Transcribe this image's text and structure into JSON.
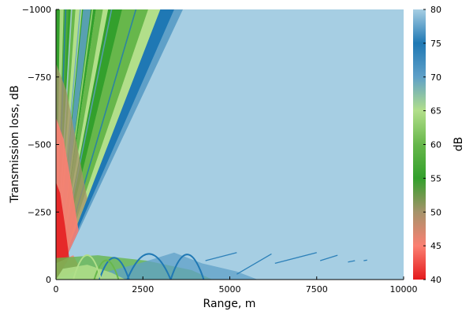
{
  "chart_data": {
    "type": "heatmap",
    "title": "",
    "xlabel": "Range, m",
    "ylabel": "Transmission loss, dB",
    "colorbar_label": "dB",
    "xlim": [
      0,
      10000
    ],
    "ylim": [
      0,
      -1000
    ],
    "clim": [
      40,
      80
    ],
    "x_ticks": [
      0,
      2500,
      5000,
      7500,
      10000
    ],
    "x_tick_labels": [
      "0",
      "2500",
      "5000",
      "7500",
      "10000"
    ],
    "y_ticks": [
      0,
      -250,
      -500,
      -750,
      -1000
    ],
    "y_tick_labels": [
      "0",
      "−250",
      "−500",
      "−750",
      "−1000"
    ],
    "colorbar_ticks": [
      40,
      45,
      50,
      55,
      60,
      65,
      70,
      75,
      80
    ],
    "colorbar_tick_labels": [
      "40",
      "45",
      "50",
      "55",
      "60",
      "65",
      "70",
      "75",
      "80"
    ],
    "colormap": [
      "#e41a1c",
      "#fb8072",
      "#a6936a",
      "#33a02c",
      "#67b74b",
      "#b2df8a",
      "#5fa0c8",
      "#1f78b4",
      "#a6cee3"
    ],
    "background_value": 80,
    "grid": false,
    "features": [
      {
        "name": "near-field beams",
        "range_m": [
          0,
          3600
        ],
        "depth_m": [
          0,
          -1000
        ]
      },
      {
        "name": "surface interference",
        "range_m": [
          0,
          5800
        ],
        "depth_m": [
          0,
          -100
        ]
      },
      {
        "name": "distant streaks",
        "range_m": [
          5800,
          9000
        ],
        "depth_m": [
          -40,
          -100
        ]
      }
    ]
  }
}
